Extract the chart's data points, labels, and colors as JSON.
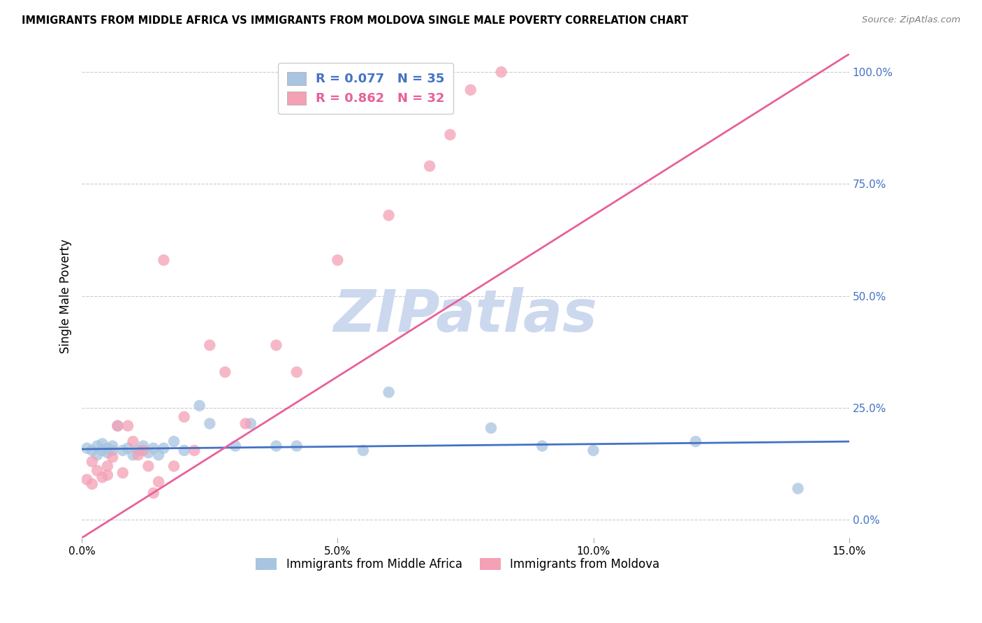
{
  "title": "IMMIGRANTS FROM MIDDLE AFRICA VS IMMIGRANTS FROM MOLDOVA SINGLE MALE POVERTY CORRELATION CHART",
  "source": "Source: ZipAtlas.com",
  "ylabel": "Single Male Poverty",
  "legend_top_blue": "R = 0.077   N = 35",
  "legend_top_pink": "R = 0.862   N = 32",
  "legend_bottom_labels": [
    "Immigrants from Middle Africa",
    "Immigrants from Moldova"
  ],
  "R_blue": 0.077,
  "N_blue": 35,
  "R_pink": 0.862,
  "N_pink": 32,
  "xlim": [
    0.0,
    0.15
  ],
  "ylim": [
    -0.04,
    1.04
  ],
  "xtick_vals": [
    0.0,
    0.05,
    0.1,
    0.15
  ],
  "xtick_labels": [
    "0.0%",
    "5.0%",
    "10.0%",
    "15.0%"
  ],
  "ytick_right_vals": [
    0.0,
    0.25,
    0.5,
    0.75,
    1.0
  ],
  "ytick_right_labels": [
    "0.0%",
    "25.0%",
    "50.0%",
    "75.0%",
    "100.0%"
  ],
  "color_blue": "#a8c4e0",
  "color_pink": "#f4a0b5",
  "line_color_blue": "#4472c4",
  "line_color_pink": "#e8609a",
  "watermark_text": "ZIPatlas",
  "watermark_color": "#ccd8ee",
  "background_color": "#ffffff",
  "blue_x": [
    0.001,
    0.002,
    0.003,
    0.003,
    0.004,
    0.004,
    0.005,
    0.005,
    0.006,
    0.006,
    0.007,
    0.008,
    0.009,
    0.01,
    0.011,
    0.012,
    0.013,
    0.014,
    0.015,
    0.016,
    0.018,
    0.02,
    0.023,
    0.025,
    0.03,
    0.033,
    0.038,
    0.042,
    0.055,
    0.06,
    0.08,
    0.09,
    0.1,
    0.12,
    0.14
  ],
  "blue_y": [
    0.16,
    0.155,
    0.165,
    0.145,
    0.155,
    0.17,
    0.15,
    0.16,
    0.155,
    0.165,
    0.21,
    0.155,
    0.16,
    0.145,
    0.155,
    0.165,
    0.15,
    0.16,
    0.145,
    0.16,
    0.175,
    0.155,
    0.255,
    0.215,
    0.165,
    0.215,
    0.165,
    0.165,
    0.155,
    0.285,
    0.205,
    0.165,
    0.155,
    0.175,
    0.07
  ],
  "pink_x": [
    0.001,
    0.002,
    0.002,
    0.003,
    0.004,
    0.005,
    0.005,
    0.006,
    0.007,
    0.008,
    0.009,
    0.01,
    0.011,
    0.012,
    0.013,
    0.014,
    0.015,
    0.016,
    0.018,
    0.02,
    0.022,
    0.025,
    0.028,
    0.032,
    0.038,
    0.042,
    0.05,
    0.06,
    0.068,
    0.072,
    0.076,
    0.082
  ],
  "pink_y": [
    0.09,
    0.13,
    0.08,
    0.11,
    0.095,
    0.12,
    0.1,
    0.14,
    0.21,
    0.105,
    0.21,
    0.175,
    0.145,
    0.155,
    0.12,
    0.06,
    0.085,
    0.58,
    0.12,
    0.23,
    0.155,
    0.39,
    0.33,
    0.215,
    0.39,
    0.33,
    0.58,
    0.68,
    0.79,
    0.86,
    0.96,
    1.0
  ],
  "blue_line_x": [
    0.0,
    0.15
  ],
  "blue_line_y": [
    0.158,
    0.175
  ],
  "pink_line_x": [
    0.0,
    0.15
  ],
  "pink_line_y": [
    -0.04,
    1.04
  ]
}
